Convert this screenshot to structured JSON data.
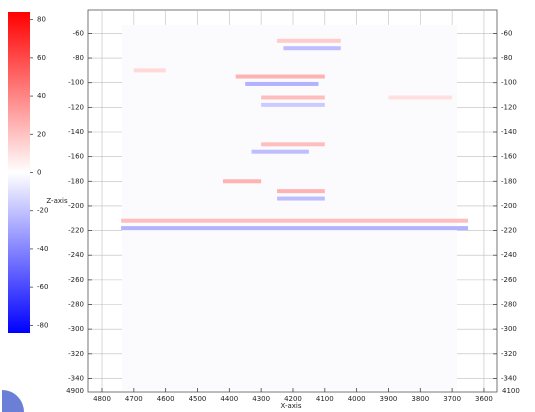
{
  "chart_data": {
    "type": "heatmap",
    "x_label": "X-axis",
    "y_label": "Z-axis",
    "xlim": [
      4844,
      3559
    ],
    "xticks": [
      4800,
      4700,
      4600,
      4500,
      4400,
      4300,
      4200,
      4100,
      4000,
      3900,
      3800,
      3700,
      3600
    ],
    "ylim": [
      -41,
      -351
    ],
    "yticks": [
      -60,
      -80,
      -100,
      -120,
      -140,
      -160,
      -180,
      -200,
      -220,
      -240,
      -260,
      -280,
      -300,
      -320,
      -340
    ],
    "corner_labels": [
      "4900",
      "4100"
    ],
    "grid": true,
    "clim": [
      -84,
      84
    ],
    "cticks": [
      80,
      60,
      40,
      20,
      0,
      -20,
      -40,
      -60,
      -80
    ],
    "colormap": [
      "#0000ff",
      "#ffffff",
      "#ff0000"
    ],
    "reflectors": [
      {
        "x0": 4740,
        "x1": 3650,
        "z": -212,
        "amplitude": 25
      },
      {
        "x0": 4740,
        "x1": 3650,
        "z": -218,
        "amplitude": -30
      },
      {
        "x0": 4250,
        "x1": 4050,
        "z": -66,
        "amplitude": 20
      },
      {
        "x0": 4230,
        "x1": 4050,
        "z": -72,
        "amplitude": -25
      },
      {
        "x0": 4380,
        "x1": 4100,
        "z": -95,
        "amplitude": 30
      },
      {
        "x0": 4350,
        "x1": 4120,
        "z": -101,
        "amplitude": -30
      },
      {
        "x0": 4300,
        "x1": 4100,
        "z": -112,
        "amplitude": 25
      },
      {
        "x0": 4300,
        "x1": 4100,
        "z": -118,
        "amplitude": -20
      },
      {
        "x0": 4300,
        "x1": 4100,
        "z": -150,
        "amplitude": 25
      },
      {
        "x0": 4330,
        "x1": 4150,
        "z": -156,
        "amplitude": -25
      },
      {
        "x0": 4420,
        "x1": 4300,
        "z": -180,
        "amplitude": 30
      },
      {
        "x0": 4250,
        "x1": 4100,
        "z": -188,
        "amplitude": 30
      },
      {
        "x0": 4250,
        "x1": 4100,
        "z": -194,
        "amplitude": -25
      },
      {
        "x0": 4700,
        "x1": 4600,
        "z": -90,
        "amplitude": 15
      },
      {
        "x0": 3900,
        "x1": 3700,
        "z": -112,
        "amplitude": 12
      }
    ]
  }
}
